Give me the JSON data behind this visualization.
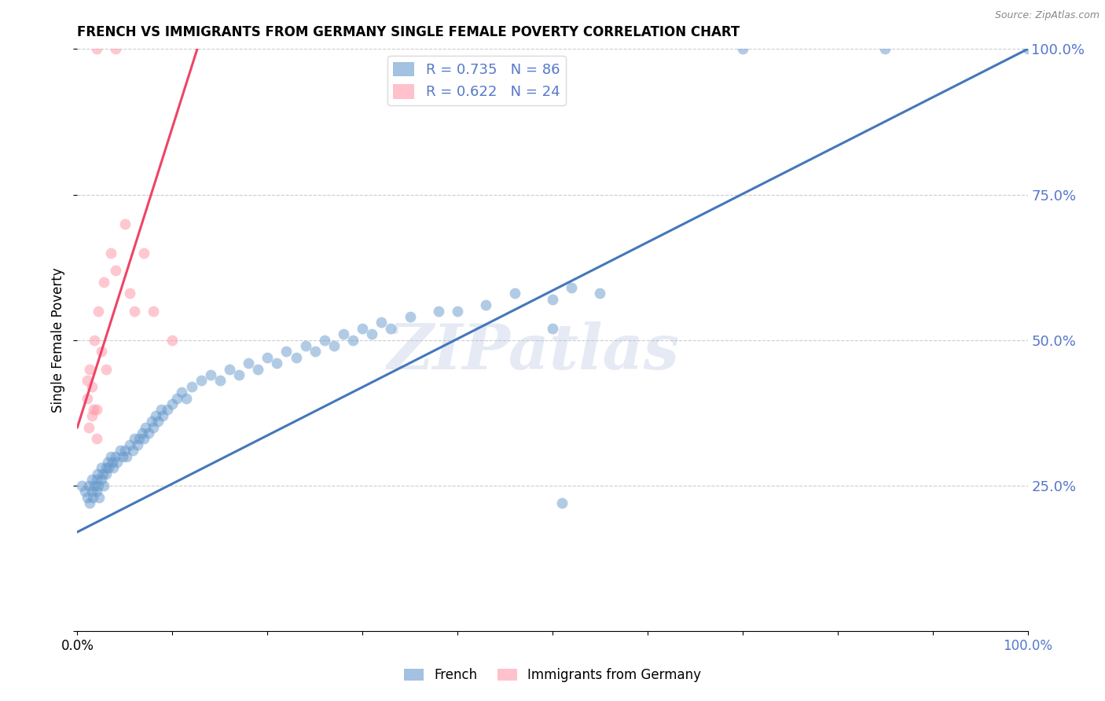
{
  "title": "FRENCH VS IMMIGRANTS FROM GERMANY SINGLE FEMALE POVERTY CORRELATION CHART",
  "source": "Source: ZipAtlas.com",
  "ylabel": "Single Female Poverty",
  "french_R": 0.735,
  "french_N": 86,
  "german_R": 0.622,
  "german_N": 24,
  "xlim": [
    0.0,
    1.0
  ],
  "ylim": [
    0.0,
    1.0
  ],
  "xticks": [
    0.0,
    0.1,
    0.2,
    0.3,
    0.4,
    0.5,
    0.6,
    0.7,
    0.8,
    0.9,
    1.0
  ],
  "yticks": [
    0.0,
    0.25,
    0.5,
    0.75,
    1.0
  ],
  "xtick_labels": [
    "0.0%",
    "",
    "",
    "",
    "",
    "",
    "",
    "",
    "",
    "",
    "100.0%"
  ],
  "ytick_labels": [
    "",
    "25.0%",
    "50.0%",
    "75.0%",
    "100.0%"
  ],
  "grid_color": "#cccccc",
  "background_color": "#ffffff",
  "french_color": "#6699cc",
  "german_color": "#ff99aa",
  "french_line_color": "#4477bb",
  "german_line_color": "#ee4466",
  "watermark_color": "#aabbdd",
  "legend_french_label": "French",
  "legend_german_label": "Immigrants from Germany",
  "french_line_x": [
    0.0,
    1.0
  ],
  "french_line_y": [
    0.17,
    1.0
  ],
  "german_line_x": [
    0.0,
    0.13
  ],
  "german_line_y": [
    0.35,
    1.02
  ],
  "french_x": [
    0.005,
    0.008,
    0.01,
    0.012,
    0.013,
    0.015,
    0.015,
    0.016,
    0.018,
    0.02,
    0.02,
    0.021,
    0.022,
    0.023,
    0.025,
    0.025,
    0.027,
    0.028,
    0.03,
    0.03,
    0.032,
    0.033,
    0.035,
    0.037,
    0.038,
    0.04,
    0.042,
    0.045,
    0.048,
    0.05,
    0.052,
    0.055,
    0.058,
    0.06,
    0.063,
    0.065,
    0.068,
    0.07,
    0.072,
    0.075,
    0.078,
    0.08,
    0.082,
    0.085,
    0.088,
    0.09,
    0.095,
    0.1,
    0.105,
    0.11,
    0.115,
    0.12,
    0.13,
    0.14,
    0.15,
    0.16,
    0.17,
    0.18,
    0.19,
    0.2,
    0.21,
    0.22,
    0.23,
    0.24,
    0.25,
    0.26,
    0.27,
    0.28,
    0.29,
    0.3,
    0.31,
    0.32,
    0.33,
    0.35,
    0.38,
    0.4,
    0.43,
    0.46,
    0.5,
    0.52,
    0.55,
    0.7,
    0.85,
    1.0,
    0.5,
    0.51
  ],
  "french_y": [
    0.25,
    0.24,
    0.23,
    0.25,
    0.22,
    0.24,
    0.26,
    0.23,
    0.25,
    0.24,
    0.26,
    0.27,
    0.25,
    0.23,
    0.26,
    0.28,
    0.27,
    0.25,
    0.28,
    0.27,
    0.29,
    0.28,
    0.3,
    0.29,
    0.28,
    0.3,
    0.29,
    0.31,
    0.3,
    0.31,
    0.3,
    0.32,
    0.31,
    0.33,
    0.32,
    0.33,
    0.34,
    0.33,
    0.35,
    0.34,
    0.36,
    0.35,
    0.37,
    0.36,
    0.38,
    0.37,
    0.38,
    0.39,
    0.4,
    0.41,
    0.4,
    0.42,
    0.43,
    0.44,
    0.43,
    0.45,
    0.44,
    0.46,
    0.45,
    0.47,
    0.46,
    0.48,
    0.47,
    0.49,
    0.48,
    0.5,
    0.49,
    0.51,
    0.5,
    0.52,
    0.51,
    0.53,
    0.52,
    0.54,
    0.55,
    0.55,
    0.56,
    0.58,
    0.57,
    0.59,
    0.58,
    1.0,
    1.0,
    1.0,
    0.52,
    0.22
  ],
  "german_x": [
    0.01,
    0.01,
    0.012,
    0.013,
    0.015,
    0.015,
    0.017,
    0.018,
    0.02,
    0.02,
    0.022,
    0.025,
    0.028,
    0.03,
    0.035,
    0.04,
    0.05,
    0.055,
    0.06,
    0.07,
    0.08,
    0.1,
    0.02,
    0.04
  ],
  "german_y": [
    0.4,
    0.43,
    0.35,
    0.45,
    0.37,
    0.42,
    0.38,
    0.5,
    0.33,
    0.38,
    0.55,
    0.48,
    0.6,
    0.45,
    0.65,
    0.62,
    0.7,
    0.58,
    0.55,
    0.65,
    0.55,
    0.5,
    1.0,
    1.0
  ]
}
